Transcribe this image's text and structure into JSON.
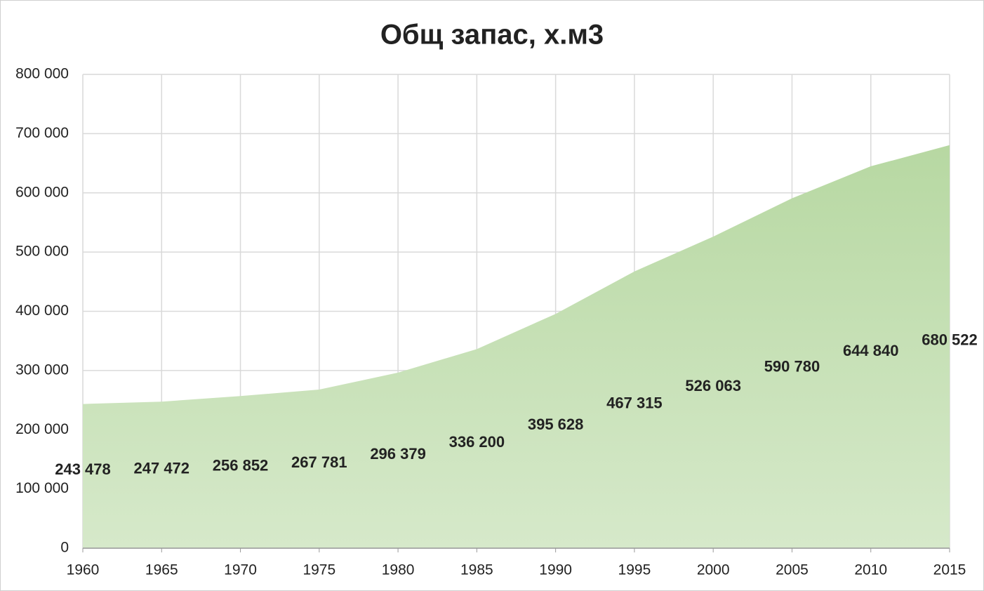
{
  "chart_data": {
    "type": "area",
    "title": "Общ запас,  х.м3",
    "x": [
      1960,
      1965,
      1970,
      1975,
      1980,
      1985,
      1990,
      1995,
      2000,
      2005,
      2010,
      2015
    ],
    "values": [
      243478,
      247472,
      256852,
      267781,
      296379,
      336200,
      395628,
      467315,
      526063,
      590780,
      644840,
      680522
    ],
    "value_labels": [
      "243 478",
      "247 472",
      "256 852",
      "267 781",
      "296 379",
      "336 200",
      "395 628",
      "467 315",
      "526 063",
      "590 780",
      "644 840",
      "680 522"
    ],
    "color": "#c5e0b4",
    "xlim": [
      1960,
      2015
    ],
    "xticks": [
      1960,
      1965,
      1970,
      1975,
      1980,
      1985,
      1990,
      1995,
      2000,
      2005,
      2010,
      2015
    ],
    "ylim": [
      0,
      800000
    ],
    "yticks": [
      0,
      {
        "value": 100000,
        "label": "100 000"
      },
      {
        "value": 200000,
        "label": "200 000"
      },
      {
        "value": 300000,
        "label": "300 000"
      },
      {
        "value": 400000,
        "label": "400 000"
      },
      {
        "value": 500000,
        "label": "500 000"
      },
      {
        "value": 600000,
        "label": "600 000"
      },
      {
        "value": 700000,
        "label": "700 000"
      },
      {
        "value": 800000,
        "label": "800 000"
      }
    ],
    "grid": true
  }
}
